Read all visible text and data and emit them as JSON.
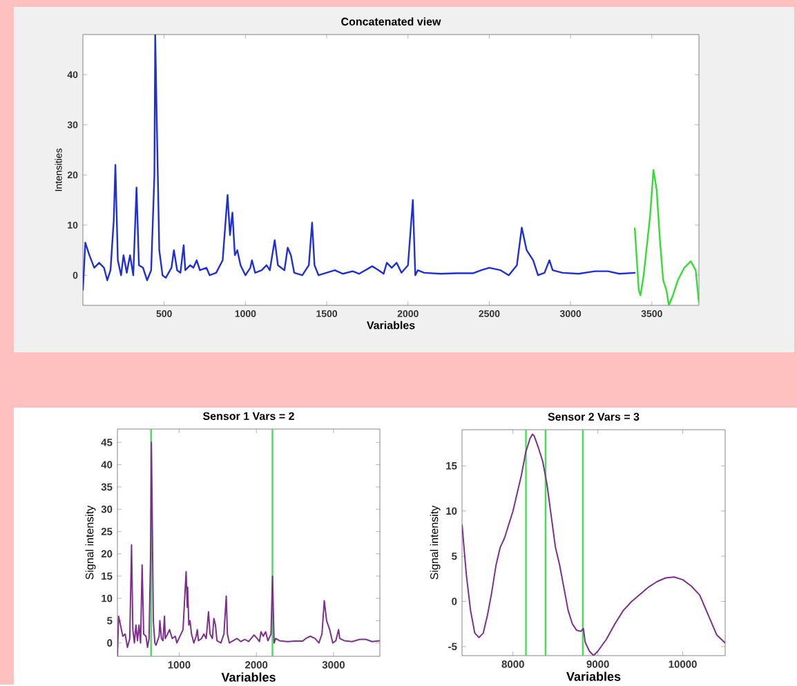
{
  "chart_data": [
    {
      "type": "line",
      "title": "Concatenated view",
      "xlabel": "Variables",
      "ylabel": "Intensities",
      "xlim": [
        0,
        3790
      ],
      "ylim": [
        -6,
        48
      ],
      "xticks": [
        500,
        1000,
        1500,
        2000,
        2500,
        3000,
        3500
      ],
      "yticks": [
        0,
        10,
        20,
        30,
        40
      ],
      "grid": false,
      "series": [
        {
          "color": "#1f2fd8",
          "x": [
            0,
            15,
            40,
            70,
            100,
            130,
            150,
            170,
            190,
            200,
            215,
            235,
            250,
            270,
            290,
            310,
            330,
            345,
            370,
            395,
            420,
            440,
            445,
            455,
            470,
            490,
            510,
            545,
            560,
            580,
            600,
            620,
            630,
            660,
            680,
            700,
            720,
            760,
            780,
            820,
            860,
            890,
            905,
            920,
            935,
            950,
            970,
            1000,
            1030,
            1040,
            1060,
            1100,
            1130,
            1150,
            1180,
            1200,
            1240,
            1260,
            1280,
            1300,
            1350,
            1390,
            1410,
            1425,
            1450,
            1500,
            1550,
            1600,
            1660,
            1700,
            1780,
            1820,
            1850,
            1870,
            1900,
            1930,
            1960,
            2000,
            2030,
            2045,
            2060,
            2100,
            2200,
            2300,
            2400,
            2450,
            2500,
            2570,
            2620,
            2670,
            2700,
            2730,
            2770,
            2800,
            2840,
            2870,
            2890,
            2950,
            3050,
            3150,
            3230,
            3300,
            3400
          ],
          "values": [
            -3,
            6.5,
            4,
            1.5,
            2.5,
            1.5,
            -1,
            1,
            11,
            22,
            3,
            0,
            4,
            0.5,
            4,
            0,
            17.5,
            2,
            1.5,
            -1,
            1,
            20,
            48,
            30,
            5,
            0,
            -0.5,
            1.5,
            5,
            1,
            0.5,
            6,
            1,
            2,
            1.5,
            3,
            1,
            1.5,
            0,
            0.5,
            3,
            16,
            8,
            12.5,
            4,
            5,
            2,
            0,
            1.5,
            3,
            0.5,
            1,
            2,
            1,
            7,
            2,
            1,
            5.5,
            4,
            0.5,
            0,
            2,
            10.5,
            2,
            0,
            0.5,
            1,
            0.3,
            0.8,
            0.3,
            1.8,
            1,
            0.3,
            2.5,
            1.5,
            2.5,
            0.5,
            2,
            15,
            0,
            1,
            0.5,
            0.3,
            0.4,
            0.4,
            1,
            1.5,
            1,
            0,
            2,
            9.5,
            5,
            3,
            0,
            0.5,
            3,
            1,
            0.5,
            0.3,
            0.8,
            0.8,
            0.3,
            0.5
          ]
        },
        {
          "color": "#33dd33",
          "x": [
            3395,
            3420,
            3430,
            3450,
            3470,
            3490,
            3510,
            3530,
            3550,
            3570,
            3590,
            3605,
            3630,
            3660,
            3700,
            3740,
            3770,
            3790
          ],
          "values": [
            9.5,
            -3,
            -4,
            0,
            6,
            12,
            21,
            17,
            7,
            -1,
            -3,
            -6,
            -4,
            -1,
            1.5,
            2.8,
            1,
            -5.5
          ]
        }
      ]
    },
    {
      "type": "line",
      "title": "Sensor 1  Vars = 2",
      "xlabel": "Variables",
      "ylabel": "Signal intensity",
      "xlim": [
        200,
        3600
      ],
      "ylim": [
        -3,
        48
      ],
      "xticks": [
        1000,
        2000,
        3000
      ],
      "yticks": [
        0,
        5,
        10,
        15,
        20,
        25,
        30,
        35,
        40,
        45
      ],
      "grid": false,
      "series": [
        {
          "color": "#7e2f8e",
          "x": [
            200,
            215,
            240,
            270,
            300,
            330,
            360,
            383,
            400,
            420,
            440,
            460,
            480,
            500,
            520,
            540,
            570,
            590,
            610,
            630,
            640,
            650,
            665,
            685,
            700,
            740,
            750,
            770,
            790,
            810,
            820,
            850,
            875,
            910,
            950,
            970,
            1050,
            1090,
            1105,
            1110,
            1125,
            1140,
            1160,
            1190,
            1220,
            1235,
            1250,
            1290,
            1320,
            1350,
            1380,
            1400,
            1430,
            1450,
            1470,
            1490,
            1540,
            1580,
            1610,
            1625,
            1650,
            1700,
            1750,
            1800,
            1850,
            1900,
            1970,
            2010,
            2040,
            2060,
            2090,
            2120,
            2150,
            2190,
            2209,
            2230,
            2250,
            2300,
            2400,
            2500,
            2600,
            2640,
            2700,
            2760,
            2810,
            2850,
            2880,
            2910,
            2950,
            2990,
            3030,
            3065,
            3080,
            3140,
            3240,
            3340,
            3420,
            3500,
            3600
          ],
          "values": [
            -3,
            6,
            4,
            1.5,
            2,
            -1,
            1,
            22,
            3,
            0,
            4,
            0.5,
            4,
            0,
            17.5,
            2,
            1.5,
            -1,
            1,
            20,
            45,
            30,
            5,
            0,
            -0.5,
            1.5,
            5,
            1,
            0.5,
            6,
            1,
            2,
            3,
            1,
            1.5,
            0,
            3,
            16,
            8,
            12.5,
            4,
            5,
            2,
            0,
            1.5,
            3,
            0.5,
            1,
            2,
            1,
            7,
            2,
            1,
            5.5,
            4,
            0.5,
            0,
            2,
            10.5,
            2,
            0,
            0.5,
            1,
            0.3,
            0.8,
            0.3,
            1.8,
            1,
            0.3,
            2.5,
            1.5,
            2.5,
            0.5,
            2,
            15,
            0,
            1,
            0.5,
            0.3,
            0.4,
            0.4,
            1,
            1.5,
            1,
            0,
            2,
            9.5,
            5,
            3,
            0,
            0.5,
            3,
            1,
            0.5,
            0.3,
            0.8,
            0.8,
            0.3,
            0.5
          ]
        }
      ],
      "ref_lines": [
        {
          "axis": "x",
          "value": 636,
          "color": "#44dd55"
        },
        {
          "axis": "x",
          "value": 2209,
          "color": "#44dd55"
        }
      ]
    },
    {
      "type": "line",
      "title": "Sensor 2  Vars = 3",
      "xlabel": "Variables",
      "ylabel": "Signal intensity",
      "xlim": [
        7400,
        10500
      ],
      "ylim": [
        -6,
        19
      ],
      "xticks": [
        8000,
        9000,
        10000
      ],
      "yticks": [
        -5,
        0,
        5,
        10,
        15
      ],
      "grid": false,
      "series": [
        {
          "color": "#7e2f8e",
          "x": [
            7400,
            7450,
            7500,
            7550,
            7600,
            7650,
            7700,
            7750,
            7800,
            7850,
            7900,
            7950,
            8000,
            8050,
            8100,
            8150,
            8200,
            8230,
            8250,
            8300,
            8350,
            8400,
            8450,
            8500,
            8550,
            8600,
            8650,
            8700,
            8750,
            8800,
            8830,
            8850,
            8900,
            8950,
            9000,
            9100,
            9200,
            9300,
            9400,
            9500,
            9600,
            9700,
            9800,
            9900,
            10000,
            10100,
            10200,
            10300,
            10400,
            10500
          ],
          "values": [
            8.5,
            3,
            -1,
            -3.5,
            -4,
            -3.5,
            -1.5,
            1,
            4,
            6,
            7,
            8.5,
            10,
            12,
            14,
            16.5,
            18,
            18.5,
            18.3,
            17,
            15.5,
            13,
            9.5,
            6,
            4,
            1.5,
            -1,
            -2.5,
            -3.2,
            -3.3,
            -3,
            -4.5,
            -5.5,
            -6,
            -5.5,
            -4.2,
            -2.5,
            -1,
            0,
            0.8,
            1.6,
            2.2,
            2.6,
            2.7,
            2.4,
            1.7,
            0.7,
            -1.5,
            -3.7,
            -4.6
          ]
        }
      ],
      "ref_lines": [
        {
          "axis": "x",
          "value": 8153,
          "color": "#44dd55"
        },
        {
          "axis": "x",
          "value": 8384,
          "color": "#44dd55"
        },
        {
          "axis": "x",
          "value": 8823,
          "color": "#44dd55"
        }
      ]
    }
  ]
}
